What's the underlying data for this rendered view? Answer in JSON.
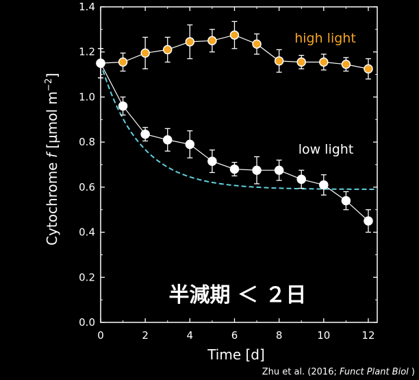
{
  "chart_data": {
    "type": "scatter",
    "xlabel": "Time [d]",
    "ylabel_parts": {
      "prefix": "Cytochrome ",
      "symbol": "f",
      "unit": " [µmol m",
      "exp": "−2",
      "close": "]"
    },
    "xlim": [
      0,
      12.4
    ],
    "ylim": [
      0,
      1.4
    ],
    "xticks": [
      "0",
      "2",
      "4",
      "6",
      "8",
      "10",
      "12"
    ],
    "yticks": [
      "0.0",
      "0.2",
      "0.4",
      "0.6",
      "0.8",
      "1.0",
      "1.2",
      "1.4"
    ],
    "series": [
      {
        "name": "high light",
        "color": "#f5a623",
        "marker": "circle",
        "x": [
          0,
          1,
          2,
          3,
          4,
          5,
          6,
          7,
          8,
          9,
          10,
          11,
          12
        ],
        "y": [
          1.15,
          1.155,
          1.195,
          1.21,
          1.245,
          1.25,
          1.275,
          1.235,
          1.16,
          1.155,
          1.155,
          1.145,
          1.125
        ],
        "err": [
          0.065,
          0.04,
          0.07,
          0.055,
          0.075,
          0.05,
          0.06,
          0.045,
          0.05,
          0.03,
          0.035,
          0.03,
          0.045
        ]
      },
      {
        "name": "low light",
        "color": "#ffffff",
        "marker": "circle",
        "x": [
          0,
          1,
          2,
          3,
          4,
          5,
          6,
          7,
          8,
          9,
          10,
          11,
          12
        ],
        "y": [
          1.15,
          0.96,
          0.835,
          0.81,
          0.79,
          0.715,
          0.68,
          0.675,
          0.675,
          0.635,
          0.61,
          0.54,
          0.45
        ],
        "err": [
          0.065,
          0.04,
          0.03,
          0.05,
          0.06,
          0.05,
          0.03,
          0.06,
          0.045,
          0.04,
          0.045,
          0.04,
          0.05
        ]
      }
    ],
    "fit_curve": {
      "color": "#5fd3e0",
      "style": "dashed",
      "y0": 1.15,
      "asymptote": 0.59,
      "half_life_days": 1.2
    },
    "annotation": "半減期 ＜ ２日",
    "credit": {
      "prefix": "Zhu et al. (2016; ",
      "journal": "Funct Plant Biol",
      "suffix": " )"
    }
  }
}
